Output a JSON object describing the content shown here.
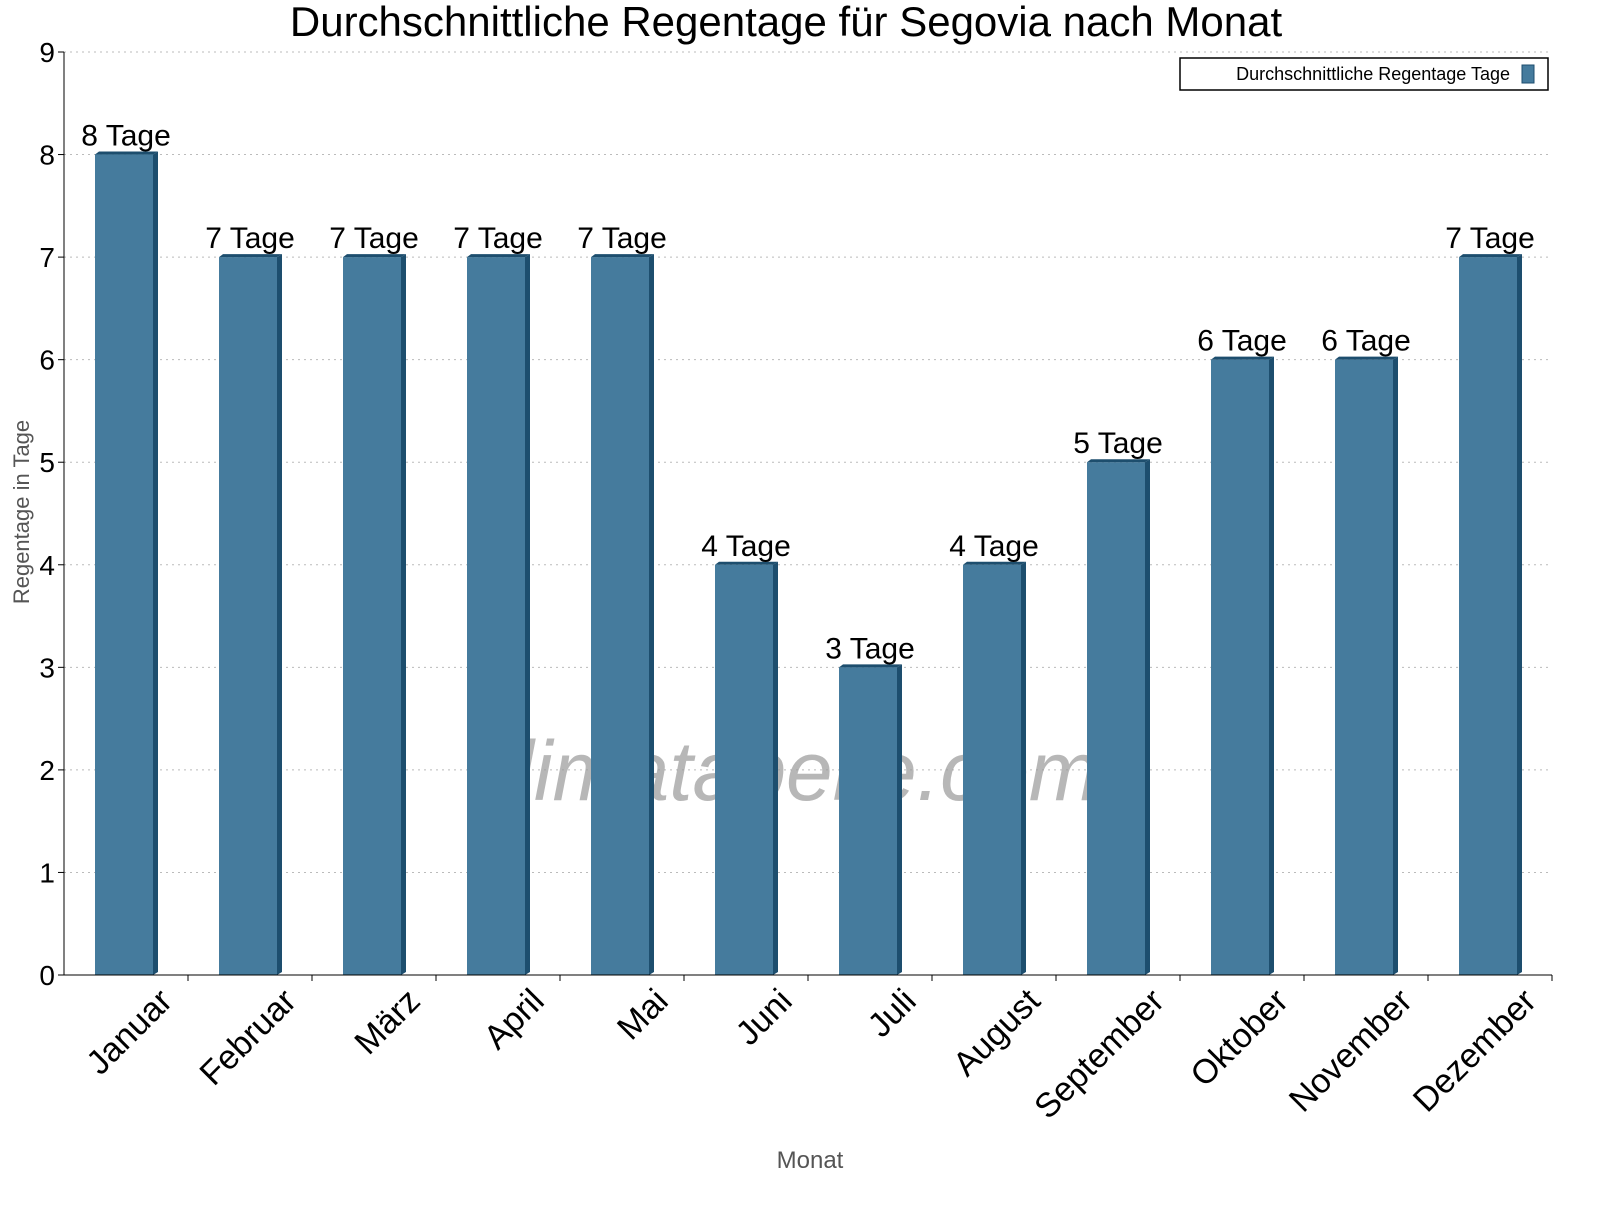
{
  "chart_data": {
    "type": "bar",
    "title": "Durchschnittliche Regentage für Segovia nach Monat",
    "xlabel": "Monat",
    "ylabel": "Regentage in Tage",
    "categories": [
      "Januar",
      "Februar",
      "März",
      "April",
      "Mai",
      "Juni",
      "Juli",
      "August",
      "September",
      "Oktober",
      "November",
      "Dezember"
    ],
    "series": [
      {
        "name": "Durchschnittliche Regentage Tage",
        "values": [
          8,
          7,
          7,
          7,
          7,
          4,
          3,
          4,
          5,
          6,
          6,
          7
        ],
        "color": "#457b9d",
        "side_color": "#1d4e6e"
      }
    ],
    "data_labels": [
      "8 Tage",
      "7 Tage",
      "7 Tage",
      "7 Tage",
      "7 Tage",
      "4 Tage",
      "3 Tage",
      "4 Tage",
      "5 Tage",
      "6 Tage",
      "6 Tage",
      "7 Tage"
    ],
    "ylim": [
      0,
      9
    ],
    "yticks": [
      "0",
      "1",
      "2",
      "3",
      "4",
      "5",
      "6",
      "7",
      "8",
      "9"
    ],
    "grid": true,
    "legend_position": "top-right",
    "watermark": "klimatabelle.com"
  }
}
